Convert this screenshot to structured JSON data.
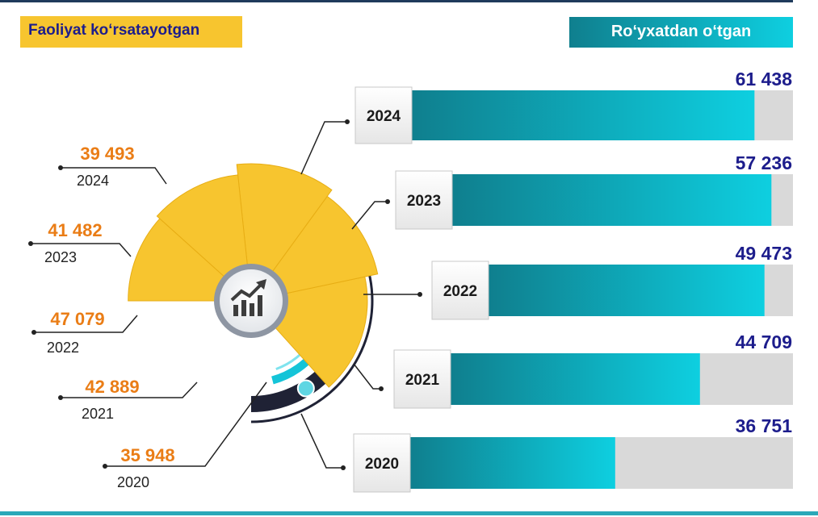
{
  "header": {
    "left_title": "Faoliyat ko‘rsatayotgan",
    "right_title": "Ro‘yxatdan o‘tgan"
  },
  "colors": {
    "accent_yellow": "#f7c52f",
    "value_orange": "#ea7d16",
    "value_navy": "#1d1d8c",
    "bar_teal_start": "#0f7f8e",
    "bar_teal_end": "#0ecfe0",
    "bar_track": "#d9d9d9",
    "ring_dark": "#1f2235",
    "ring_cyan": "#14c4d8"
  },
  "icons": {
    "center": "growth-chart-icon"
  },
  "chart_data": [
    {
      "type": "pie",
      "title": "Faoliyat ko‘rsatayotgan",
      "categories": [
        "2024",
        "2023",
        "2022",
        "2021",
        "2020"
      ],
      "values": [
        39493,
        41482,
        47079,
        42889,
        35948
      ],
      "value_labels": [
        "39 493",
        "41 482",
        "47 079",
        "42 889",
        "35 948"
      ]
    },
    {
      "type": "bar",
      "title": "Ro‘yxatdan o‘tgan",
      "categories": [
        "2024",
        "2023",
        "2022",
        "2021",
        "2020"
      ],
      "values": [
        61438,
        57236,
        49473,
        44709,
        36751
      ],
      "value_labels": [
        "61 438",
        "57 236",
        "49 473",
        "44 709",
        "36 751"
      ]
    }
  ]
}
